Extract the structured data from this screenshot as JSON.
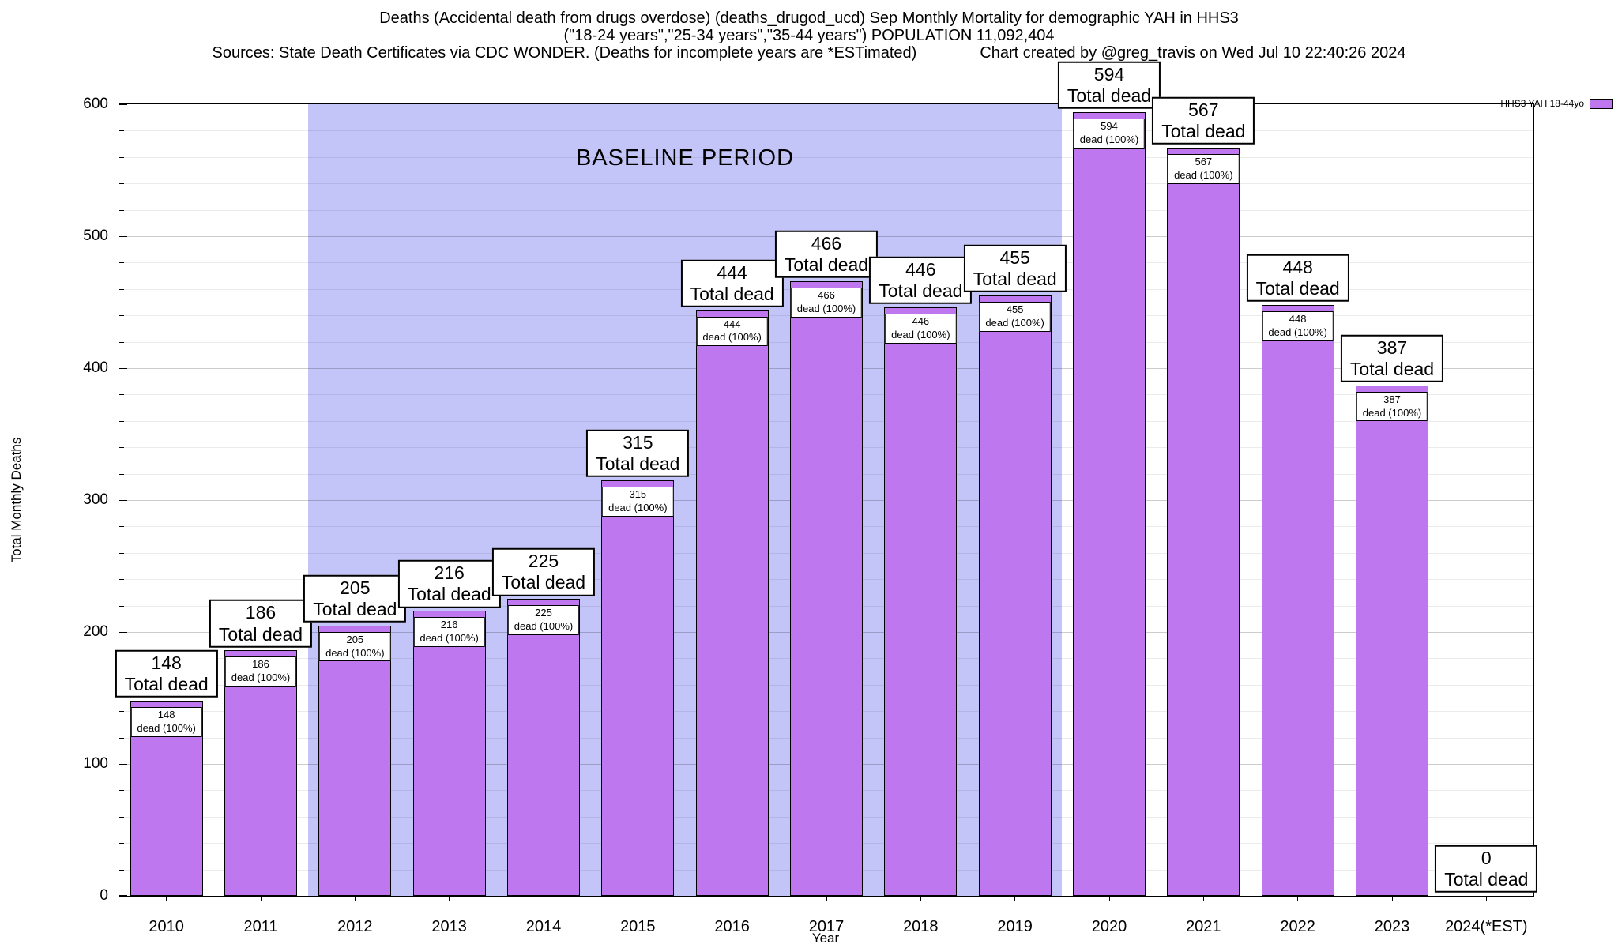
{
  "title": {
    "line1": "Deaths (Accidental death from drugs overdose) (deaths_drugod_ucd) Sep Monthly Mortality for demographic YAH in HHS3",
    "line2": "(\"18-24 years\",\"25-34 years\",\"35-44 years\") POPULATION 11,092,404",
    "line3_left": "Sources: State Death Certificates via CDC WONDER. (Deaths for incomplete years are *ESTimated)",
    "line3_right": "Chart created by @greg_travis on Wed Jul 10 22:40:26 2024"
  },
  "legend": {
    "label": "HHS3 YAH 18-44yo",
    "swatch_color": "#bf77f0"
  },
  "baseline": {
    "label": "BASELINE PERIOD",
    "start_category": "2012",
    "end_category": "2019",
    "color": "#c3c5f9"
  },
  "chart_data": {
    "type": "bar",
    "title": "Deaths (Accidental death from drugs overdose) (deaths_drugod_ucd) Sep Monthly Mortality for demographic YAH in HHS3",
    "xlabel": "Year",
    "ylabel": "Total Monthly Deaths",
    "ylim": [
      0,
      600
    ],
    "yticks": [
      0,
      100,
      200,
      300,
      400,
      500,
      600
    ],
    "y_minor_step": 20,
    "grid": true,
    "legend_position": "top-right",
    "bar_color": "#bf77f0",
    "categories": [
      "2010",
      "2011",
      "2012",
      "2013",
      "2014",
      "2015",
      "2016",
      "2017",
      "2018",
      "2019",
      "2020",
      "2021",
      "2022",
      "2023",
      "2024(*EST)"
    ],
    "values": [
      148,
      186,
      205,
      216,
      225,
      315,
      444,
      466,
      446,
      455,
      594,
      567,
      448,
      387,
      0
    ],
    "series": [
      {
        "name": "HHS3 YAH 18-44yo",
        "values": [
          148,
          186,
          205,
          216,
          225,
          315,
          444,
          466,
          446,
          455,
          594,
          567,
          448,
          387,
          0
        ]
      }
    ],
    "bar_top_label_suffix": "Total dead",
    "bar_inner_label_suffix": "dead (100%)"
  }
}
